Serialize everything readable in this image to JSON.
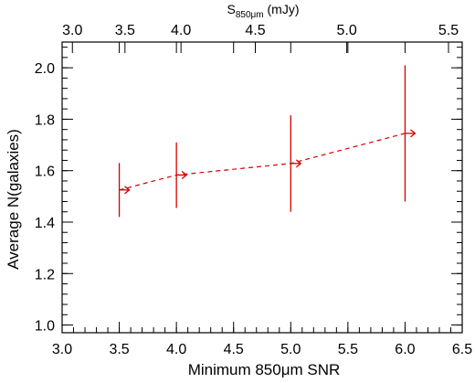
{
  "chart_data": {
    "type": "line",
    "title": "",
    "xlabel": "Minimum 850μm SNR",
    "ylabel": "Average N(galaxies)",
    "top_xlabel": {
      "main": "S",
      "subscript": "850μm",
      "unit": "(mJy)"
    },
    "xlim": [
      3.0,
      6.5
    ],
    "ylim": [
      0.97,
      2.1
    ],
    "x_ticks": [
      "3.0",
      "3.5",
      "4.0",
      "4.5",
      "5.0",
      "5.5",
      "6.0",
      "6.5"
    ],
    "y_ticks": [
      "1.0",
      "1.2",
      "1.4",
      "1.6",
      "1.8",
      "2.0"
    ],
    "top_x_ticks": [
      {
        "label": "3.0",
        "snr": 3.09
      },
      {
        "label": "3.5",
        "snr": 3.55
      },
      {
        "label": "4.0",
        "snr": 4.04
      },
      {
        "label": "4.5",
        "snr": 4.69
      },
      {
        "label": "5.0",
        "snr": 5.49
      },
      {
        "label": "5.5",
        "snr": 6.38
      }
    ],
    "series": [
      {
        "x": [
          3.5,
          4.0,
          5.0,
          6.0
        ],
        "y": [
          1.525,
          1.583,
          1.628,
          1.745
        ],
        "y_low": [
          1.42,
          1.455,
          1.44,
          1.48
        ],
        "y_high": [
          1.63,
          1.71,
          1.815,
          2.01
        ],
        "marker": "arrow-right",
        "line_style": "dashed"
      }
    ],
    "colors": {
      "series": "#d40000",
      "axes": "#000000"
    },
    "grid": false,
    "legend": "none"
  }
}
